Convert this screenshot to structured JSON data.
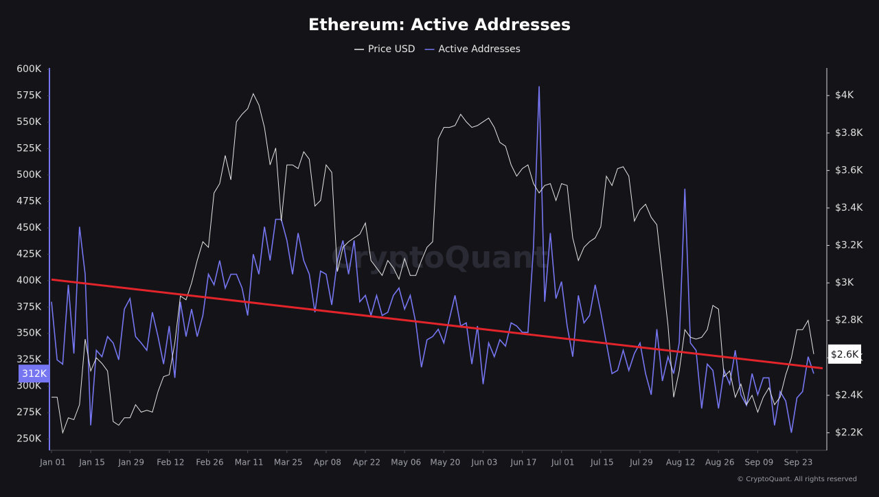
{
  "chart_data": {
    "type": "line",
    "title": "Ethereum: Active Addresses",
    "watermark": "CryptoQuant",
    "footer": "© CryptoQuant. All rights reserved",
    "x": [
      "Jan 01",
      "Jan 03",
      "Jan 05",
      "Jan 07",
      "Jan 09",
      "Jan 11",
      "Jan 13",
      "Jan 15",
      "Jan 17",
      "Jan 19",
      "Jan 21",
      "Jan 23",
      "Jan 25",
      "Jan 27",
      "Jan 29",
      "Jan 31",
      "Feb 02",
      "Feb 04",
      "Feb 06",
      "Feb 08",
      "Feb 10",
      "Feb 12",
      "Feb 14",
      "Feb 16",
      "Feb 18",
      "Feb 20",
      "Feb 22",
      "Feb 24",
      "Feb 26",
      "Feb 28",
      "Mar 01",
      "Mar 03",
      "Mar 05",
      "Mar 07",
      "Mar 09",
      "Mar 11",
      "Mar 13",
      "Mar 15",
      "Mar 17",
      "Mar 19",
      "Mar 21",
      "Mar 23",
      "Mar 25",
      "Mar 27",
      "Mar 29",
      "Mar 31",
      "Apr 02",
      "Apr 04",
      "Apr 06",
      "Apr 08",
      "Apr 10",
      "Apr 12",
      "Apr 14",
      "Apr 16",
      "Apr 18",
      "Apr 20",
      "Apr 22",
      "Apr 24",
      "Apr 26",
      "Apr 28",
      "Apr 30",
      "May 02",
      "May 04",
      "May 06",
      "May 08",
      "May 10",
      "May 12",
      "May 14",
      "May 16",
      "May 18",
      "May 20",
      "May 22",
      "May 24",
      "May 26",
      "May 28",
      "May 30",
      "Jun 01",
      "Jun 03",
      "Jun 05",
      "Jun 07",
      "Jun 09",
      "Jun 11",
      "Jun 13",
      "Jun 15",
      "Jun 17",
      "Jun 19",
      "Jun 21",
      "Jun 23",
      "Jun 25",
      "Jun 27",
      "Jun 29",
      "Jul 01",
      "Jul 03",
      "Jul 05",
      "Jul 07",
      "Jul 09",
      "Jul 11",
      "Jul 13",
      "Jul 15",
      "Jul 17",
      "Jul 19",
      "Jul 21",
      "Jul 23",
      "Jul 25",
      "Jul 27",
      "Jul 29",
      "Jul 31",
      "Aug 02",
      "Aug 04",
      "Aug 06",
      "Aug 08",
      "Aug 10",
      "Aug 12",
      "Aug 14",
      "Aug 16",
      "Aug 18",
      "Aug 20",
      "Aug 22",
      "Aug 24",
      "Aug 26",
      "Aug 28",
      "Aug 30",
      "Sep 01",
      "Sep 03",
      "Sep 05",
      "Sep 07",
      "Sep 09",
      "Sep 11",
      "Sep 13",
      "Sep 15",
      "Sep 17",
      "Sep 19",
      "Sep 21",
      "Sep 23",
      "Sep 25",
      "Sep 27",
      "Sep 29"
    ],
    "xticks": [
      "Jan 01",
      "Jan 15",
      "Jan 29",
      "Feb 12",
      "Feb 26",
      "Mar 11",
      "Mar 25",
      "Apr 08",
      "Apr 22",
      "May 06",
      "May 20",
      "Jun 03",
      "Jun 17",
      "Jul 01",
      "Jul 15",
      "Jul 29",
      "Aug 12",
      "Aug 26",
      "Sep 09",
      "Sep 23"
    ],
    "ylim": [
      240000,
      600000
    ],
    "yticks": [
      {
        "value": 250000,
        "label": "250K"
      },
      {
        "value": 275000,
        "label": "275K"
      },
      {
        "value": 300000,
        "label": "300K"
      },
      {
        "value": 325000,
        "label": "325K"
      },
      {
        "value": 350000,
        "label": "350K"
      },
      {
        "value": 375000,
        "label": "375K"
      },
      {
        "value": 400000,
        "label": "400K"
      },
      {
        "value": 425000,
        "label": "425K"
      },
      {
        "value": 450000,
        "label": "450K"
      },
      {
        "value": 475000,
        "label": "475K"
      },
      {
        "value": 500000,
        "label": "500K"
      },
      {
        "value": 525000,
        "label": "525K"
      },
      {
        "value": 550000,
        "label": "550K"
      },
      {
        "value": 575000,
        "label": "575K"
      },
      {
        "value": 600000,
        "label": "600K"
      }
    ],
    "y2lim": [
      2110,
      4140
    ],
    "y2ticks": [
      {
        "value": 2200,
        "label": "$2.2K"
      },
      {
        "value": 2400,
        "label": "$2.4K"
      },
      {
        "value": 2600,
        "label": "$2.6K"
      },
      {
        "value": 2800,
        "label": "$2.8K"
      },
      {
        "value": 3000,
        "label": "$3K"
      },
      {
        "value": 3200,
        "label": "$3.2K"
      },
      {
        "value": 3400,
        "label": "$3.4K"
      },
      {
        "value": 3600,
        "label": "$3.6K"
      },
      {
        "value": 3800,
        "label": "$3.8K"
      },
      {
        "value": 4000,
        "label": "$4K"
      }
    ],
    "grid": false,
    "legend": "top",
    "series": [
      {
        "name": "Price USD",
        "color": "#e6e6e6",
        "axis": "y2",
        "last_value_label": "$2.6K",
        "values": [
          2390,
          2390,
          2200,
          2280,
          2270,
          2350,
          2700,
          2530,
          2600,
          2570,
          2530,
          2260,
          2240,
          2280,
          2280,
          2350,
          2310,
          2320,
          2310,
          2420,
          2500,
          2510,
          2680,
          2930,
          2910,
          3000,
          3120,
          3220,
          3190,
          3480,
          3530,
          3680,
          3550,
          3860,
          3900,
          3930,
          4010,
          3950,
          3830,
          3630,
          3720,
          3330,
          3630,
          3630,
          3610,
          3700,
          3660,
          3410,
          3440,
          3630,
          3590,
          3060,
          3190,
          3220,
          3240,
          3260,
          3320,
          3120,
          3080,
          3040,
          3120,
          3080,
          3020,
          3130,
          3040,
          3040,
          3120,
          3190,
          3220,
          3770,
          3830,
          3830,
          3840,
          3900,
          3860,
          3830,
          3840,
          3860,
          3880,
          3830,
          3750,
          3730,
          3630,
          3570,
          3610,
          3630,
          3530,
          3480,
          3520,
          3530,
          3440,
          3530,
          3520,
          3240,
          3120,
          3190,
          3220,
          3240,
          3300,
          3570,
          3520,
          3610,
          3620,
          3570,
          3330,
          3390,
          3420,
          3350,
          3310,
          3040,
          2770,
          2390,
          2530,
          2750,
          2710,
          2700,
          2710,
          2750,
          2880,
          2860,
          2500,
          2530,
          2390,
          2460,
          2350,
          2400,
          2310,
          2390,
          2440,
          2350,
          2390,
          2510,
          2600,
          2750,
          2750,
          2800,
          2620
        ]
      },
      {
        "name": "Active Addresses",
        "color": "#7676f2",
        "last_value_label": "312K",
        "values": [
          380000,
          325000,
          321000,
          396000,
          331000,
          451000,
          406000,
          263000,
          334000,
          328000,
          347000,
          341000,
          325000,
          373000,
          383000,
          347000,
          341000,
          334000,
          370000,
          347000,
          321000,
          357000,
          308000,
          380000,
          347000,
          373000,
          347000,
          367000,
          406000,
          396000,
          419000,
          393000,
          406000,
          406000,
          393000,
          367000,
          425000,
          406000,
          451000,
          419000,
          458000,
          458000,
          438000,
          406000,
          445000,
          419000,
          406000,
          370000,
          409000,
          406000,
          377000,
          419000,
          438000,
          406000,
          438000,
          380000,
          386000,
          367000,
          386000,
          367000,
          370000,
          386000,
          393000,
          373000,
          386000,
          360000,
          318000,
          344000,
          347000,
          354000,
          341000,
          364000,
          386000,
          357000,
          360000,
          321000,
          357000,
          302000,
          341000,
          328000,
          344000,
          338000,
          360000,
          357000,
          351000,
          351000,
          432000,
          584000,
          380000,
          445000,
          383000,
          399000,
          357000,
          328000,
          386000,
          360000,
          367000,
          396000,
          370000,
          341000,
          312000,
          315000,
          334000,
          315000,
          331000,
          341000,
          312000,
          292000,
          354000,
          305000,
          328000,
          312000,
          341000,
          487000,
          341000,
          334000,
          279000,
          321000,
          315000,
          279000,
          315000,
          302000,
          334000,
          292000,
          282000,
          312000,
          292000,
          308000,
          308000,
          263000,
          295000,
          286000,
          256000,
          289000,
          295000,
          328000,
          312000
        ]
      }
    ],
    "trendline": {
      "color": "#e3242b",
      "values": [
        401000,
        318000
      ]
    }
  }
}
